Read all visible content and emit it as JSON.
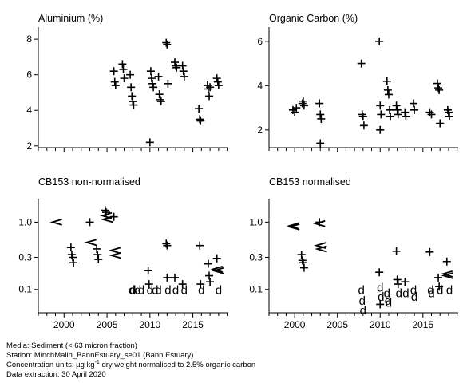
{
  "chart_data": [
    {
      "type": "scatter",
      "title": "Aluminium (%)",
      "scale": "linear",
      "xlim": [
        1997,
        2019.5
      ],
      "ylim": [
        1.9,
        8.5
      ],
      "yticks": [
        2,
        4,
        6,
        8
      ],
      "ytick_labels": [
        "2",
        "4",
        "6",
        "8"
      ],
      "xticks": [
        2000,
        2005,
        2010,
        2015
      ],
      "xtick_labels": [],
      "points": [
        {
          "x": 2005.8,
          "y": 6.2,
          "m": "+"
        },
        {
          "x": 2005.9,
          "y": 5.6,
          "m": "+"
        },
        {
          "x": 2006.0,
          "y": 5.4,
          "m": "+"
        },
        {
          "x": 2006.8,
          "y": 6.6,
          "m": "+"
        },
        {
          "x": 2006.9,
          "y": 6.3,
          "m": "+"
        },
        {
          "x": 2007.0,
          "y": 5.8,
          "m": "+"
        },
        {
          "x": 2007.7,
          "y": 6.0,
          "m": "+"
        },
        {
          "x": 2007.8,
          "y": 5.3,
          "m": "+"
        },
        {
          "x": 2007.9,
          "y": 4.8,
          "m": "+"
        },
        {
          "x": 2008.0,
          "y": 4.5,
          "m": "+"
        },
        {
          "x": 2008.1,
          "y": 4.3,
          "m": "+"
        },
        {
          "x": 2010.0,
          "y": 2.2,
          "m": "+"
        },
        {
          "x": 2010.1,
          "y": 6.2,
          "m": "+"
        },
        {
          "x": 2010.2,
          "y": 5.8,
          "m": "+"
        },
        {
          "x": 2010.3,
          "y": 5.5,
          "m": "+"
        },
        {
          "x": 2010.4,
          "y": 5.3,
          "m": "+"
        },
        {
          "x": 2011.0,
          "y": 5.9,
          "m": "+"
        },
        {
          "x": 2011.1,
          "y": 4.9,
          "m": "+"
        },
        {
          "x": 2011.2,
          "y": 4.6,
          "m": "+"
        },
        {
          "x": 2011.3,
          "y": 4.5,
          "m": "+"
        },
        {
          "x": 2011.9,
          "y": 7.8,
          "m": "+"
        },
        {
          "x": 2012.0,
          "y": 7.7,
          "m": "+"
        },
        {
          "x": 2012.1,
          "y": 5.5,
          "m": "+"
        },
        {
          "x": 2012.9,
          "y": 6.7,
          "m": "+"
        },
        {
          "x": 2013.0,
          "y": 6.5,
          "m": "+"
        },
        {
          "x": 2013.1,
          "y": 6.4,
          "m": "+"
        },
        {
          "x": 2013.8,
          "y": 6.5,
          "m": "+"
        },
        {
          "x": 2013.9,
          "y": 6.2,
          "m": "+"
        },
        {
          "x": 2014.0,
          "y": 5.9,
          "m": "+"
        },
        {
          "x": 2015.7,
          "y": 4.1,
          "m": "+"
        },
        {
          "x": 2015.8,
          "y": 3.5,
          "m": "+"
        },
        {
          "x": 2015.9,
          "y": 3.4,
          "m": "+"
        },
        {
          "x": 2016.7,
          "y": 5.4,
          "m": "+"
        },
        {
          "x": 2016.8,
          "y": 5.2,
          "m": "+"
        },
        {
          "x": 2016.9,
          "y": 4.8,
          "m": "+"
        },
        {
          "x": 2017.0,
          "y": 5.3,
          "m": "+"
        },
        {
          "x": 2017.8,
          "y": 5.8,
          "m": "+"
        },
        {
          "x": 2017.9,
          "y": 5.6,
          "m": "+"
        },
        {
          "x": 2018.0,
          "y": 5.4,
          "m": "+"
        }
      ]
    },
    {
      "type": "scatter",
      "title": "Organic Carbon (%)",
      "scale": "linear",
      "xlim": [
        1997,
        2019.5
      ],
      "ylim": [
        1.2,
        6.5
      ],
      "yticks": [
        2,
        4,
        6
      ],
      "ytick_labels": [
        "2",
        "4",
        "6"
      ],
      "xticks": [
        2000,
        2005,
        2010,
        2015
      ],
      "xtick_labels": [],
      "points": [
        {
          "x": 1999.8,
          "y": 2.9,
          "m": "+"
        },
        {
          "x": 2000.0,
          "y": 2.8,
          "m": "+"
        },
        {
          "x": 2000.2,
          "y": 3.0,
          "m": "+"
        },
        {
          "x": 2000.9,
          "y": 3.2,
          "m": "+"
        },
        {
          "x": 2001.0,
          "y": 3.3,
          "m": "+"
        },
        {
          "x": 2001.1,
          "y": 3.1,
          "m": "+"
        },
        {
          "x": 2002.9,
          "y": 3.2,
          "m": "+"
        },
        {
          "x": 2003.0,
          "y": 2.7,
          "m": "+"
        },
        {
          "x": 2003.1,
          "y": 2.5,
          "m": "+"
        },
        {
          "x": 2003.0,
          "y": 1.4,
          "m": "+"
        },
        {
          "x": 2007.8,
          "y": 5.0,
          "m": "+"
        },
        {
          "x": 2007.9,
          "y": 2.7,
          "m": "+"
        },
        {
          "x": 2008.0,
          "y": 2.6,
          "m": "+"
        },
        {
          "x": 2008.1,
          "y": 2.2,
          "m": "+"
        },
        {
          "x": 2009.9,
          "y": 6.0,
          "m": "+"
        },
        {
          "x": 2010.0,
          "y": 3.1,
          "m": "+"
        },
        {
          "x": 2010.1,
          "y": 2.7,
          "m": "+"
        },
        {
          "x": 2010.0,
          "y": 2.0,
          "m": "+"
        },
        {
          "x": 2010.8,
          "y": 4.2,
          "m": "+"
        },
        {
          "x": 2010.9,
          "y": 3.8,
          "m": "+"
        },
        {
          "x": 2011.0,
          "y": 3.6,
          "m": "+"
        },
        {
          "x": 2011.1,
          "y": 2.9,
          "m": "+"
        },
        {
          "x": 2011.2,
          "y": 2.6,
          "m": "+"
        },
        {
          "x": 2011.9,
          "y": 3.1,
          "m": "+"
        },
        {
          "x": 2012.0,
          "y": 2.9,
          "m": "+"
        },
        {
          "x": 2012.1,
          "y": 2.7,
          "m": "+"
        },
        {
          "x": 2012.9,
          "y": 2.8,
          "m": "+"
        },
        {
          "x": 2013.0,
          "y": 2.6,
          "m": "+"
        },
        {
          "x": 2013.9,
          "y": 3.2,
          "m": "+"
        },
        {
          "x": 2014.0,
          "y": 2.9,
          "m": "+"
        },
        {
          "x": 2015.8,
          "y": 2.8,
          "m": "+"
        },
        {
          "x": 2016.0,
          "y": 2.7,
          "m": "+"
        },
        {
          "x": 2016.7,
          "y": 4.1,
          "m": "+"
        },
        {
          "x": 2016.8,
          "y": 3.9,
          "m": "+"
        },
        {
          "x": 2016.9,
          "y": 3.8,
          "m": "+"
        },
        {
          "x": 2017.0,
          "y": 2.3,
          "m": "+"
        },
        {
          "x": 2017.9,
          "y": 2.9,
          "m": "+"
        },
        {
          "x": 2018.0,
          "y": 2.8,
          "m": "+"
        },
        {
          "x": 2018.1,
          "y": 2.6,
          "m": "+"
        }
      ]
    },
    {
      "type": "scatter",
      "title": "CB153 non-normalised",
      "scale": "log10",
      "xlim": [
        1997,
        2019.5
      ],
      "ylim": [
        0.045,
        2.0
      ],
      "yticks": [
        0.1,
        0.3,
        1.0
      ],
      "ytick_labels": [
        "0.1",
        "0.3",
        "1.0"
      ],
      "xticks": [
        2000,
        2005,
        2010,
        2015
      ],
      "xtick_labels": [
        "2000",
        "2005",
        "2010",
        "2015"
      ],
      "points": [
        {
          "x": 1999.2,
          "y": 1.0,
          "m": "<"
        },
        {
          "x": 2000.8,
          "y": 0.42,
          "m": "+"
        },
        {
          "x": 2000.9,
          "y": 0.33,
          "m": "+"
        },
        {
          "x": 2001.0,
          "y": 0.3,
          "m": "+"
        },
        {
          "x": 2001.1,
          "y": 0.25,
          "m": "+"
        },
        {
          "x": 2003.0,
          "y": 1.0,
          "m": "+"
        },
        {
          "x": 2003.2,
          "y": 0.5,
          "m": "<"
        },
        {
          "x": 2003.8,
          "y": 0.4,
          "m": "+"
        },
        {
          "x": 2003.9,
          "y": 0.33,
          "m": "+"
        },
        {
          "x": 2004.0,
          "y": 0.28,
          "m": "+"
        },
        {
          "x": 2004.8,
          "y": 1.5,
          "m": "+"
        },
        {
          "x": 2004.9,
          "y": 1.4,
          "m": "+"
        },
        {
          "x": 2005.0,
          "y": 1.25,
          "m": "<"
        },
        {
          "x": 2005.1,
          "y": 1.1,
          "m": "<"
        },
        {
          "x": 2005.8,
          "y": 1.2,
          "m": "+"
        },
        {
          "x": 2006.0,
          "y": 0.38,
          "m": "<"
        },
        {
          "x": 2006.1,
          "y": 0.32,
          "m": "<"
        },
        {
          "x": 2007.9,
          "y": 0.1,
          "m": "d"
        },
        {
          "x": 2008.0,
          "y": 0.1,
          "m": "d"
        },
        {
          "x": 2008.6,
          "y": 0.1,
          "m": "d"
        },
        {
          "x": 2009.0,
          "y": 0.1,
          "m": "d"
        },
        {
          "x": 2009.8,
          "y": 0.19,
          "m": "+"
        },
        {
          "x": 2009.9,
          "y": 0.12,
          "m": "+"
        },
        {
          "x": 2010.0,
          "y": 0.1,
          "m": "d"
        },
        {
          "x": 2010.6,
          "y": 0.1,
          "m": "d"
        },
        {
          "x": 2011.0,
          "y": 0.1,
          "m": "d"
        },
        {
          "x": 2011.9,
          "y": 0.48,
          "m": "+"
        },
        {
          "x": 2012.0,
          "y": 0.45,
          "m": "+"
        },
        {
          "x": 2012.0,
          "y": 0.15,
          "m": "+"
        },
        {
          "x": 2012.1,
          "y": 0.1,
          "m": "d"
        },
        {
          "x": 2012.9,
          "y": 0.15,
          "m": "+"
        },
        {
          "x": 2013.0,
          "y": 0.1,
          "m": "d"
        },
        {
          "x": 2013.8,
          "y": 0.12,
          "m": "+"
        },
        {
          "x": 2014.0,
          "y": 0.1,
          "m": "d"
        },
        {
          "x": 2015.8,
          "y": 0.45,
          "m": "+"
        },
        {
          "x": 2015.9,
          "y": 0.12,
          "m": "+"
        },
        {
          "x": 2016.0,
          "y": 0.1,
          "m": "d"
        },
        {
          "x": 2016.8,
          "y": 0.24,
          "m": "+"
        },
        {
          "x": 2016.9,
          "y": 0.16,
          "m": "+"
        },
        {
          "x": 2017.0,
          "y": 0.13,
          "m": "+"
        },
        {
          "x": 2017.8,
          "y": 0.29,
          "m": "+"
        },
        {
          "x": 2017.9,
          "y": 0.2,
          "m": "<"
        },
        {
          "x": 2018.0,
          "y": 0.19,
          "m": "<"
        },
        {
          "x": 2018.0,
          "y": 0.1,
          "m": "d"
        }
      ]
    },
    {
      "type": "scatter",
      "title": "CB153 normalised",
      "scale": "log10",
      "xlim": [
        1997,
        2019.5
      ],
      "ylim": [
        0.045,
        2.0
      ],
      "yticks": [
        0.1,
        0.3,
        1.0
      ],
      "ytick_labels": [
        "0.1",
        "0.3",
        "1.0"
      ],
      "xticks": [
        2000,
        2005,
        2010,
        2015
      ],
      "xtick_labels": [
        "2000",
        "2005",
        "2010",
        "2015"
      ],
      "points": [
        {
          "x": 1999.9,
          "y": 0.88,
          "m": "<"
        },
        {
          "x": 2000.0,
          "y": 0.85,
          "m": "<"
        },
        {
          "x": 2000.8,
          "y": 0.33,
          "m": "+"
        },
        {
          "x": 2000.9,
          "y": 0.27,
          "m": "+"
        },
        {
          "x": 2001.0,
          "y": 0.25,
          "m": "+"
        },
        {
          "x": 2001.1,
          "y": 0.21,
          "m": "+"
        },
        {
          "x": 2002.9,
          "y": 1.0,
          "m": "+"
        },
        {
          "x": 2003.0,
          "y": 0.95,
          "m": "<"
        },
        {
          "x": 2003.1,
          "y": 0.45,
          "m": "<"
        },
        {
          "x": 2003.2,
          "y": 0.4,
          "m": "<"
        },
        {
          "x": 2007.8,
          "y": 0.1,
          "m": "d"
        },
        {
          "x": 2007.9,
          "y": 0.07,
          "m": "d"
        },
        {
          "x": 2008.0,
          "y": 0.05,
          "m": "d"
        },
        {
          "x": 2009.9,
          "y": 0.18,
          "m": "+"
        },
        {
          "x": 2010.0,
          "y": 0.11,
          "m": "d"
        },
        {
          "x": 2010.1,
          "y": 0.08,
          "m": "d"
        },
        {
          "x": 2010.0,
          "y": 0.06,
          "m": "+"
        },
        {
          "x": 2010.8,
          "y": 0.09,
          "m": "d"
        },
        {
          "x": 2010.9,
          "y": 0.07,
          "m": "d"
        },
        {
          "x": 2011.0,
          "y": 0.065,
          "m": "d"
        },
        {
          "x": 2011.9,
          "y": 0.37,
          "m": "+"
        },
        {
          "x": 2012.0,
          "y": 0.14,
          "m": "+"
        },
        {
          "x": 2012.1,
          "y": 0.12,
          "m": "+"
        },
        {
          "x": 2012.2,
          "y": 0.09,
          "m": "d"
        },
        {
          "x": 2012.9,
          "y": 0.13,
          "m": "+"
        },
        {
          "x": 2013.0,
          "y": 0.09,
          "m": "d"
        },
        {
          "x": 2013.9,
          "y": 0.1,
          "m": "d"
        },
        {
          "x": 2014.0,
          "y": 0.08,
          "m": "d"
        },
        {
          "x": 2015.8,
          "y": 0.36,
          "m": "+"
        },
        {
          "x": 2015.9,
          "y": 0.1,
          "m": "d"
        },
        {
          "x": 2016.0,
          "y": 0.09,
          "m": "d"
        },
        {
          "x": 2016.8,
          "y": 0.15,
          "m": "+"
        },
        {
          "x": 2016.9,
          "y": 0.11,
          "m": "+"
        },
        {
          "x": 2017.0,
          "y": 0.1,
          "m": "d"
        },
        {
          "x": 2017.8,
          "y": 0.26,
          "m": "+"
        },
        {
          "x": 2017.9,
          "y": 0.17,
          "m": "<"
        },
        {
          "x": 2018.0,
          "y": 0.16,
          "m": "<"
        },
        {
          "x": 2018.1,
          "y": 0.1,
          "m": "d"
        }
      ]
    }
  ],
  "footer": {
    "media": "Media: Sediment (< 63 micron fraction)",
    "station": "Station: MinchMalin_BannEstuary_se01 (Bann Estuary)",
    "units_prefix": "Concentration units:  µg kg",
    "units_exponent": "-1",
    "units_suffix": " dry weight normalised to 2.5% organic carbon",
    "extraction": "Data extraction: 30 April 2020"
  }
}
